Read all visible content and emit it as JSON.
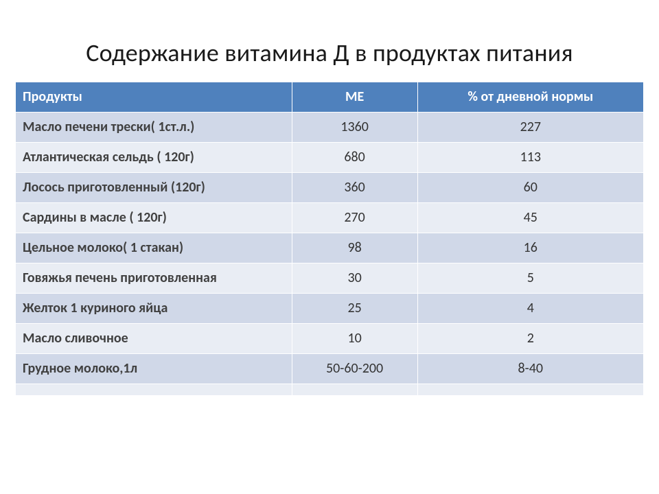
{
  "title": "Содержание витамина Д в продуктах питания",
  "table": {
    "type": "table",
    "background_color": "#ffffff",
    "header_bg": "#4f81bd",
    "header_text_color": "#ffffff",
    "row_odd_bg": "#d0d8e8",
    "row_even_bg": "#e9edf4",
    "border_color": "#ffffff",
    "title_fontsize": 36,
    "cell_fontsize": 20,
    "columns": [
      {
        "label": "Продукты",
        "align": "left",
        "width_pct": 44
      },
      {
        "label": "МЕ",
        "align": "center",
        "width_pct": 20
      },
      {
        "label": "% от дневной нормы",
        "align": "center",
        "width_pct": 36
      }
    ],
    "rows": [
      {
        "product": "Масло печени трески( 1ст.л.)",
        "me": "1360",
        "pct": "227"
      },
      {
        "product": "Атлантическая сельдь ( 120г)",
        "me": "680",
        "pct": "113"
      },
      {
        "product": "Лосось приготовленный (120г)",
        "me": "360",
        "pct": "60"
      },
      {
        "product": "Сардины в масле ( 120г)",
        "me": "270",
        "pct": "45"
      },
      {
        "product": "Цельное молоко( 1 стакан)",
        "me": "98",
        "pct": "16"
      },
      {
        "product": "Говяжья печень приготовленная",
        "me": "30",
        "pct": "5"
      },
      {
        "product": "Желток 1 куриного яйца",
        "me": "25",
        "pct": "4"
      },
      {
        "product": "Масло сливочное",
        "me": "10",
        "pct": "2"
      },
      {
        "product": "Грудное молоко,1л",
        "me": "50-60-200",
        "pct": "8-40"
      },
      {
        "product": "",
        "me": "",
        "pct": ""
      }
    ]
  }
}
